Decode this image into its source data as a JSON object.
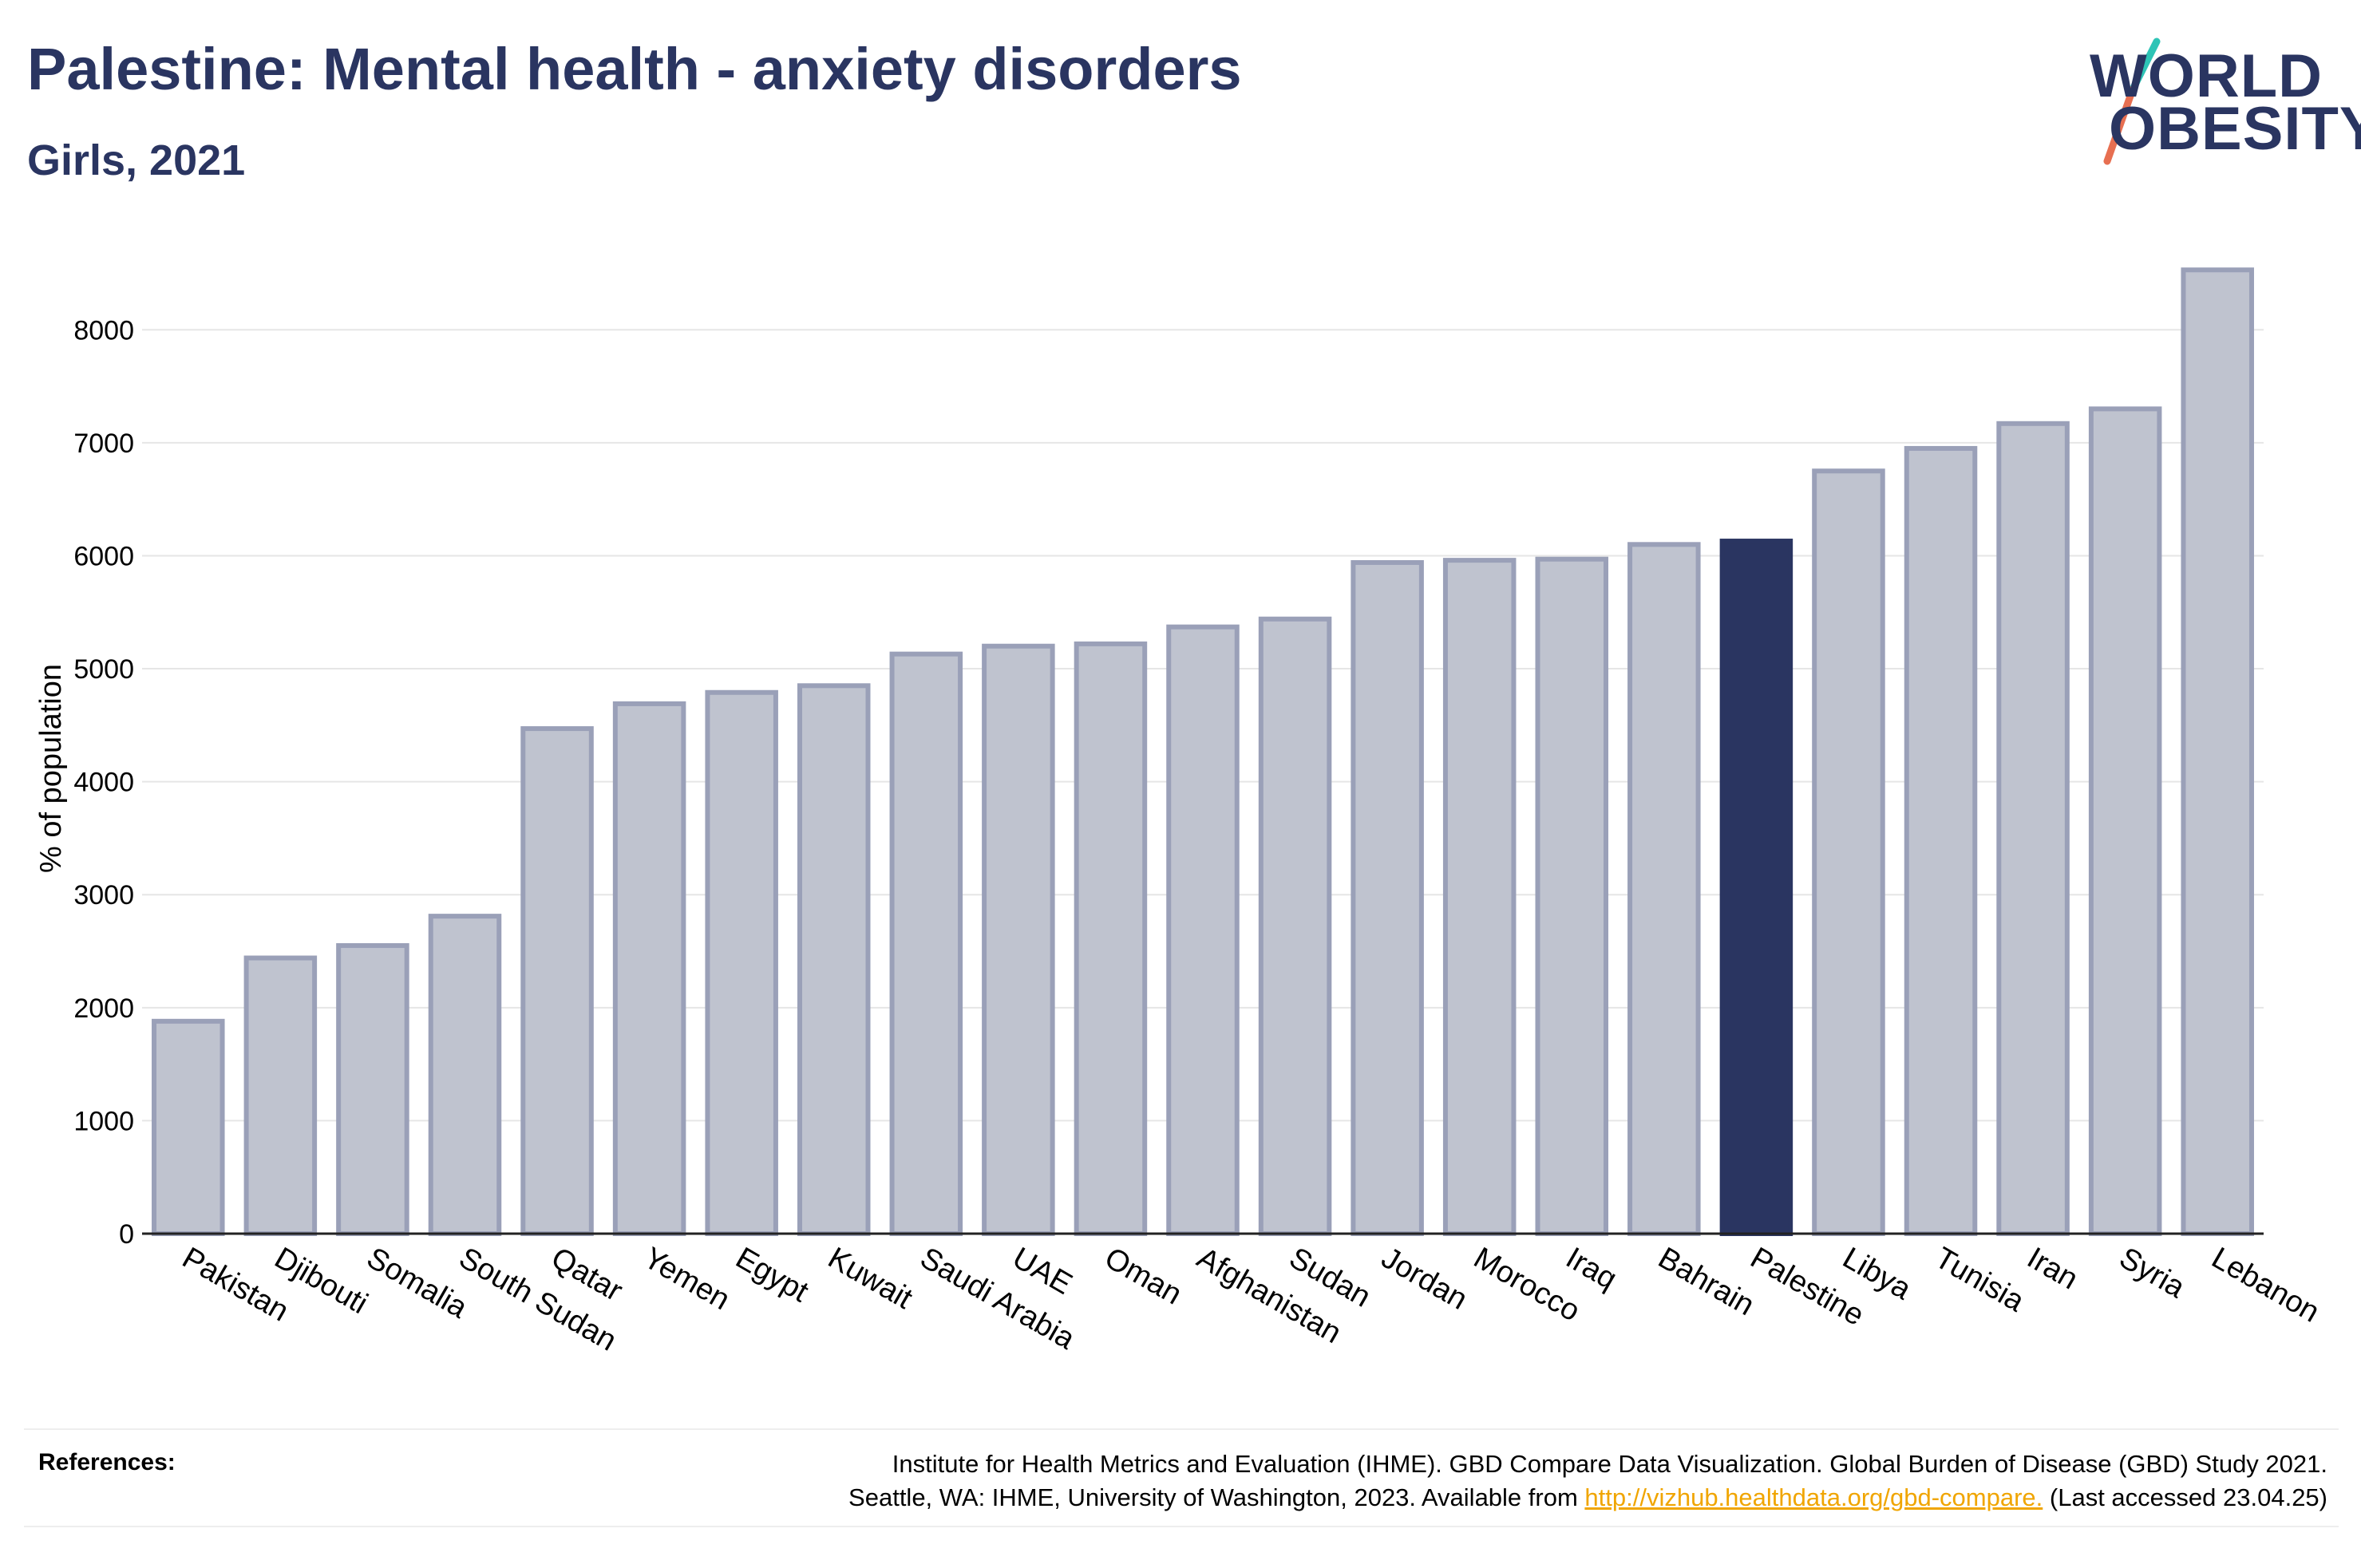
{
  "header": {
    "title": "Palestine: Mental health - anxiety disorders",
    "subtitle": "Girls, 2021"
  },
  "logo": {
    "line1": "WORLD",
    "line2": "OBESITY",
    "slash_colors": [
      "#2ec4b6",
      "#e76f51"
    ]
  },
  "colors": {
    "bar_default": "#bfc3cf",
    "bar_border": "#9aa0b8",
    "bar_highlight": "#2a3561",
    "text": "#2a3561",
    "link": "#f0a500",
    "grid": "#e6e6e6"
  },
  "chart_data": {
    "type": "bar",
    "categories": [
      "Pakistan",
      "Djibouti",
      "Somalia",
      "South Sudan",
      "Qatar",
      "Yemen",
      "Egypt",
      "Kuwait",
      "Saudi Arabia",
      "UAE",
      "Oman",
      "Afghanistan",
      "Sudan",
      "Jordan",
      "Morocco",
      "Iraq",
      "Bahrain",
      "Palestine",
      "Libya",
      "Tunisia",
      "Iran",
      "Syria",
      "Lebanon"
    ],
    "values": [
      1880,
      2440,
      2550,
      2810,
      4470,
      4690,
      4790,
      4850,
      5130,
      5200,
      5220,
      5370,
      5440,
      5940,
      5960,
      5970,
      6100,
      6130,
      6750,
      6950,
      7170,
      7300,
      8530
    ],
    "highlight": "Palestine",
    "title": "Palestine: Mental health - anxiety disorders",
    "subtitle": "Girls, 2021",
    "xlabel": "",
    "ylabel": "% of population",
    "ylim": [
      0,
      8800
    ],
    "yticks": [
      "0",
      "1000",
      "2000",
      "3000",
      "4000",
      "5000",
      "6000",
      "7000",
      "8000"
    ],
    "grid": true,
    "legend": "none"
  },
  "references": {
    "label": "References:",
    "line1": "Institute for Health Metrics and Evaluation (IHME). GBD Compare Data Visualization. Global Burden of Disease (GBD) Study 2021.",
    "line2_prefix": "Seattle, WA: IHME, University of Washington, 2023. Available from ",
    "link_text": "http://vizhub.healthdata.org/gbd-compare.",
    "line2_suffix": " (Last accessed 23.04.25)"
  }
}
